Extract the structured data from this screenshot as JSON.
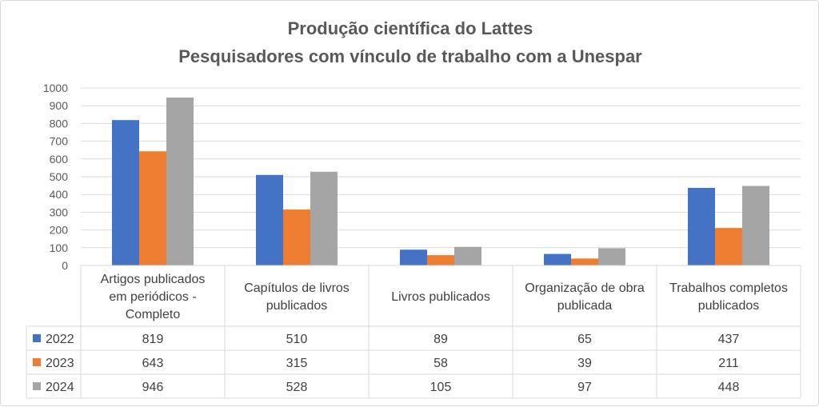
{
  "chart_data": {
    "type": "bar",
    "title": "Produção científica do Lattes",
    "subtitle": "Pesquisadores com vínculo de trabalho com a Unespar",
    "categories": [
      [
        "Artigos publicados",
        "em periódicos -",
        "Completo"
      ],
      [
        "Capítulos de livros",
        "publicados"
      ],
      [
        "Livros publicados"
      ],
      [
        "Organização de obra",
        "publicada"
      ],
      [
        "Trabalhos completos",
        "publicados"
      ]
    ],
    "series": [
      {
        "name": "2022",
        "color": "#4472c4",
        "values": [
          819,
          510,
          89,
          65,
          437
        ]
      },
      {
        "name": "2023",
        "color": "#ed7d31",
        "values": [
          643,
          315,
          58,
          39,
          211
        ]
      },
      {
        "name": "2024",
        "color": "#a5a5a5",
        "values": [
          946,
          528,
          105,
          97,
          448
        ]
      }
    ],
    "ylim": [
      0,
      1000
    ],
    "yticks": [
      0,
      100,
      200,
      300,
      400,
      500,
      600,
      700,
      800,
      900,
      1000
    ],
    "grid": true,
    "legend": "data table",
    "data_table": true
  }
}
